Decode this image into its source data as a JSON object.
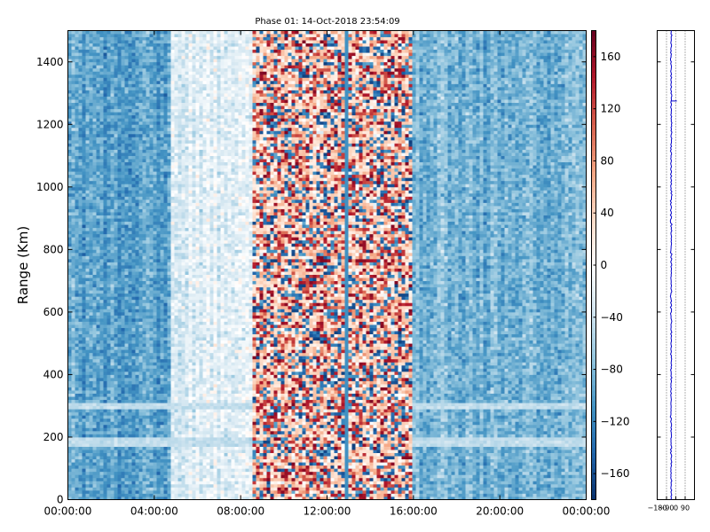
{
  "chart_data": [
    {
      "type": "heatmap",
      "title": "Phase 01: 14-Oct-2018 23:54:09",
      "xlabel": "",
      "ylabel": "Range (Km)",
      "xlim": [
        "00:00:00",
        "00:00:00"
      ],
      "ylim": [
        0,
        1500
      ],
      "xticks": [
        "00:00:00",
        "04:00:00",
        "08:00:00",
        "12:00:00",
        "16:00:00",
        "20:00:00",
        "00:00:00"
      ],
      "yticks": [
        0,
        200,
        400,
        600,
        800,
        1000,
        1200,
        1400
      ],
      "colorbar": {
        "range": [
          -180,
          180
        ],
        "ticks": [
          -160,
          -120,
          -80,
          -40,
          0,
          40,
          80,
          120,
          160
        ],
        "colormap": "RdBu_r",
        "colors": [
          "#08306b",
          "#2166ac",
          "#4393c3",
          "#92c5de",
          "#d1e5f0",
          "#ffffff",
          "#fddbc7",
          "#f4a582",
          "#d6604d",
          "#b2182b",
          "#67001f"
        ]
      },
      "regions": [
        {
          "from": "00:00:00",
          "to": "04:50:00",
          "mean_phase": -95
        },
        {
          "from": "04:50:00",
          "to": "08:30:00",
          "mean_phase": -25
        },
        {
          "from": "08:30:00",
          "to": "16:00:00",
          "mean_phase": 40
        },
        {
          "from": "16:00:00",
          "to": "24:00:00",
          "mean_phase": -85
        }
      ],
      "features": [
        {
          "label": "layer",
          "range_km": 185
        },
        {
          "label": "layer",
          "range_km": 300
        },
        {
          "label": "vertical line",
          "time": "12:50:00"
        }
      ]
    },
    {
      "type": "line",
      "xticks": [
        -180,
        -90,
        0,
        90
      ],
      "xlim": [
        -180,
        180
      ],
      "ylim": [
        0,
        1500
      ],
      "grid": "vertical dotted",
      "series_color": "#0000cc",
      "profile_mean": -45,
      "spike_range_km": 1275
    }
  ]
}
